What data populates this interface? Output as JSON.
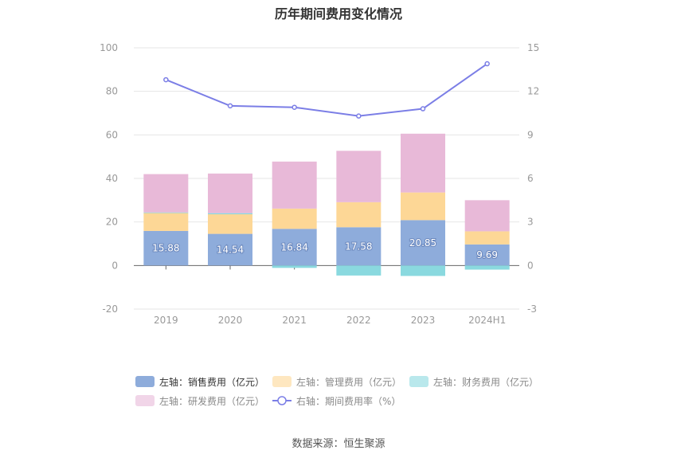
{
  "chart_data": {
    "type": "bar",
    "title": "历年期间费用变化情况",
    "categories": [
      "2019",
      "2020",
      "2021",
      "2022",
      "2023",
      "2024H1"
    ],
    "stacked": true,
    "left_axis": {
      "ylim": [
        -20,
        100
      ],
      "ticks": [
        "100",
        "80",
        "60",
        "40",
        "20",
        "0",
        "-20"
      ]
    },
    "right_axis": {
      "ylim": [
        -3,
        15
      ],
      "ticks": [
        "15",
        "12",
        "9",
        "6",
        "3",
        "0",
        "-3"
      ]
    },
    "series": [
      {
        "name": "左轴：销售费用（亿元）",
        "type": "bar",
        "axis": "left",
        "color": "#8eacdb",
        "values": [
          15.88,
          14.54,
          16.84,
          17.58,
          20.85,
          9.69
        ],
        "labels": [
          "15.88",
          "14.54",
          "16.84",
          "17.58",
          "20.85",
          "9.69"
        ]
      },
      {
        "name": "左轴：管理费用（亿元）",
        "type": "bar",
        "axis": "left",
        "color": "#fdd796",
        "values": [
          8.2,
          9.0,
          9.3,
          11.5,
          12.7,
          6.0
        ]
      },
      {
        "name": "左轴：财务费用（亿元）",
        "type": "bar",
        "axis": "left",
        "color": "#8ad9df",
        "values": [
          0.3,
          0.5,
          -1.1,
          -4.6,
          -4.8,
          -1.9
        ]
      },
      {
        "name": "左轴：研发费用（亿元）",
        "type": "bar",
        "axis": "left",
        "color": "#e8b9d8",
        "values": [
          17.6,
          18.2,
          21.6,
          23.6,
          27.0,
          14.3
        ]
      },
      {
        "name": "右轴：期间费用率（%）",
        "type": "line",
        "axis": "right",
        "color": "#7b7ee6",
        "values": [
          12.8,
          11.0,
          10.9,
          10.3,
          10.8,
          13.9
        ]
      }
    ],
    "grid": true,
    "legend_position": "bottom"
  },
  "source": "数据来源：恒生聚源"
}
